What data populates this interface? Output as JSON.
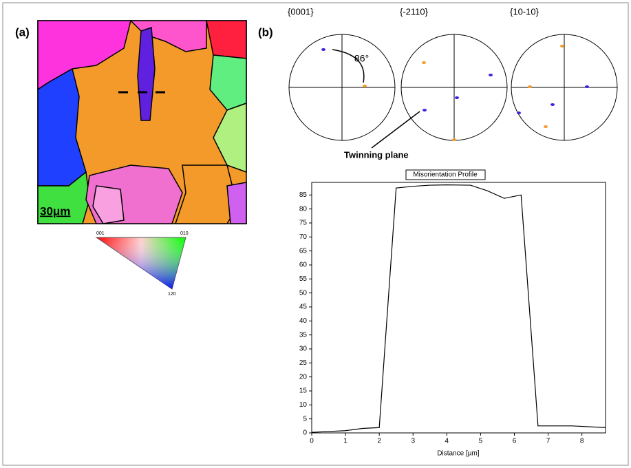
{
  "panels": {
    "a": {
      "label": "(a)",
      "scale_bar": "30μm",
      "legend": {
        "corner_001": "001",
        "corner_010": "010",
        "corner_120": "120"
      }
    },
    "b": {
      "label": "(b)",
      "pole_figures": [
        "{0001}",
        "{-2110}",
        "{10-10}"
      ],
      "angle": "86°",
      "annotation": "Twinning plane"
    }
  },
  "chart_data": {
    "type": "line",
    "title": "Misorientation Profile",
    "x_label": "Distance [µm]",
    "x": [
      0,
      1,
      1.5,
      2,
      2.5,
      3,
      3.5,
      4,
      4.7,
      5.2,
      5.7,
      6.2,
      6.7,
      7.7,
      8.7
    ],
    "values": [
      0.2,
      0.8,
      1.6,
      1.9,
      87.5,
      88.1,
      88.5,
      88.6,
      88.5,
      86.5,
      83.8,
      85,
      2.5,
      2.5,
      1.9
    ],
    "color": "#000000",
    "xlim": [
      0,
      8.7
    ],
    "xticks": [
      0,
      1,
      2,
      3,
      4,
      5,
      6,
      7,
      8
    ],
    "ylim": [
      0,
      89.5
    ],
    "yticks": [
      0,
      5,
      10,
      15,
      20,
      25,
      30,
      35,
      40,
      45,
      50,
      55,
      60,
      65,
      70,
      75,
      80,
      85
    ],
    "grid": false
  }
}
